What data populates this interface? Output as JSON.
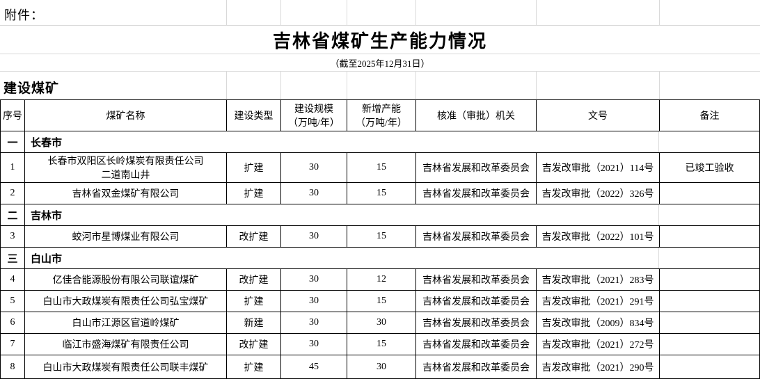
{
  "attachment_label": "附件：",
  "title": "吉林省煤矿生产能力情况",
  "subtitle": "（截至2025年12月31日）",
  "group_label": "建设煤矿",
  "table": {
    "headers": [
      "序号",
      "煤矿名称",
      "建设类型",
      "建设规模\n（万吨/年）",
      "新增产能\n（万吨/年）",
      "核准（审批）机关",
      "文号",
      "备注"
    ],
    "rows": [
      {
        "type": "section",
        "seq": "一",
        "name": "长春市"
      },
      {
        "type": "data",
        "seq": "1",
        "name": "长春市双阳区长岭煤炭有限责任公司\n二道南山井",
        "build_type": "扩建",
        "scale": "30",
        "added_capacity": "15",
        "authority": "吉林省发展和改革委员会",
        "doc_no": "吉发改审批（2021）114号",
        "remark": "已竣工验收"
      },
      {
        "type": "data",
        "seq": "2",
        "name": "吉林省双金煤矿有限公司",
        "build_type": "扩建",
        "scale": "30",
        "added_capacity": "15",
        "authority": "吉林省发展和改革委员会",
        "doc_no": "吉发改审批（2022）326号",
        "remark": ""
      },
      {
        "type": "section",
        "seq": "二",
        "name": "吉林市"
      },
      {
        "type": "data",
        "seq": "3",
        "name": "蛟河市星博煤业有限公司",
        "build_type": "改扩建",
        "scale": "30",
        "added_capacity": "15",
        "authority": "吉林省发展和改革委员会",
        "doc_no": "吉发改审批（2022）101号",
        "remark": ""
      },
      {
        "type": "section",
        "seq": "三",
        "name": "白山市"
      },
      {
        "type": "data",
        "seq": "4",
        "name": "亿佳合能源股份有限公司联谊煤矿",
        "build_type": "改扩建",
        "scale": "30",
        "added_capacity": "12",
        "authority": "吉林省发展和改革委员会",
        "doc_no": "吉发改审批（2021）283号",
        "remark": ""
      },
      {
        "type": "data",
        "seq": "5",
        "name": "白山市大政煤炭有限责任公司弘宝煤矿",
        "build_type": "扩建",
        "scale": "30",
        "added_capacity": "15",
        "authority": "吉林省发展和改革委员会",
        "doc_no": "吉发改审批（2021）291号",
        "remark": ""
      },
      {
        "type": "data",
        "seq": "6",
        "name": "白山市江源区官道岭煤矿",
        "build_type": "新建",
        "scale": "30",
        "added_capacity": "30",
        "authority": "吉林省发展和改革委员会",
        "doc_no": "吉发改审批（2009）834号",
        "remark": ""
      },
      {
        "type": "data",
        "seq": "7",
        "name": "临江市盛海煤矿有限责任公司",
        "build_type": "改扩建",
        "scale": "30",
        "added_capacity": "15",
        "authority": "吉林省发展和改革委员会",
        "doc_no": "吉发改审批（2021）272号",
        "remark": ""
      },
      {
        "type": "data",
        "seq": "8",
        "name": "白山市大政煤炭有限责任公司联丰煤矿",
        "build_type": "扩建",
        "scale": "45",
        "added_capacity": "30",
        "authority": "吉林省发展和改革委员会",
        "doc_no": "吉发改审批（2021）290号",
        "remark": ""
      }
    ]
  },
  "colors": {
    "border": "#000000",
    "faint_grid": "#d9d9d9",
    "background": "#ffffff",
    "text": "#000000"
  }
}
